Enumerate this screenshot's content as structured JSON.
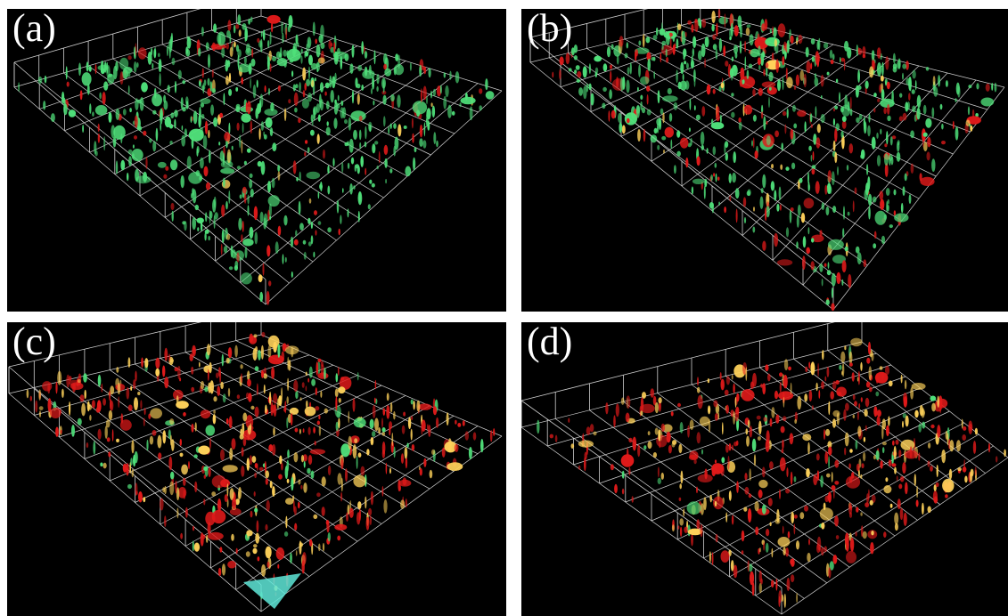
{
  "panels": [
    {
      "id": "a",
      "label": "(a)",
      "palette": "green"
    },
    {
      "id": "b",
      "label": "(b)",
      "palette": "green-red"
    },
    {
      "id": "c",
      "label": "(c)",
      "palette": "red-yellow"
    },
    {
      "id": "d",
      "label": "(d)",
      "palette": "red-yellow-dense"
    }
  ],
  "colors": {
    "background": "#000000",
    "grid": "#cfcfcf",
    "green": "#4fe07a",
    "red": "#e21a1a",
    "yellow": "#ffd25a",
    "cyan": "#5fe8d8"
  }
}
